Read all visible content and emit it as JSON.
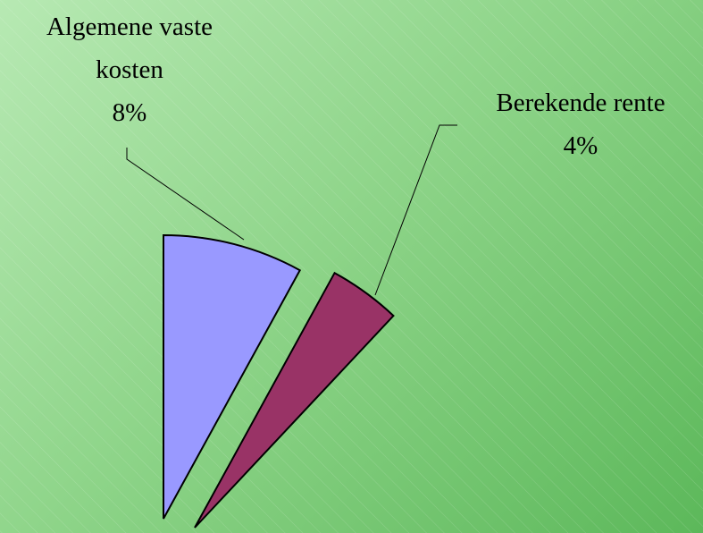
{
  "chart_data": {
    "type": "pie",
    "categories": [
      "Algemene vaste kosten",
      "Berekende rente"
    ],
    "values": [
      8,
      4
    ],
    "value_labels": [
      "8%",
      "4%"
    ],
    "colors": [
      "#9999ff",
      "#993366"
    ]
  }
}
